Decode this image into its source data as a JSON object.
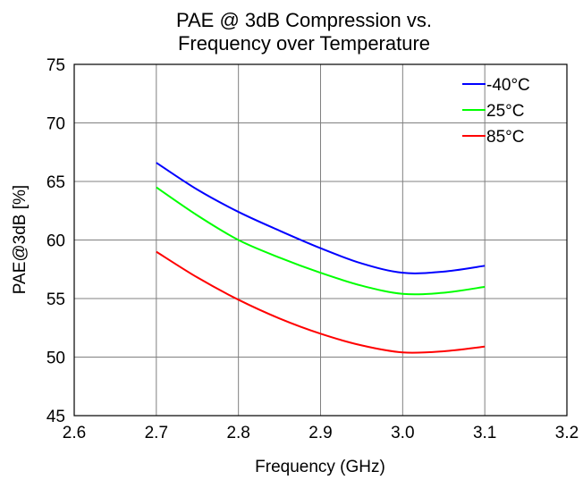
{
  "chart_data": {
    "type": "line",
    "title": "PAE @ 3dB Compression vs. Frequency over Temperature",
    "title_lines": [
      "PAE @ 3dB Compression vs.",
      "Frequency over Temperature"
    ],
    "xlabel": "Frequency (GHz)",
    "ylabel": "PAE@3dB [%]",
    "xlim": [
      2.6,
      3.2
    ],
    "ylim": [
      45,
      75
    ],
    "x_ticks": [
      2.6,
      2.7,
      2.8,
      2.9,
      3.0,
      3.1,
      3.2
    ],
    "x_tick_labels": [
      "2.6",
      "2.7",
      "2.8",
      "2.9",
      "3.0",
      "3.1",
      "3.2"
    ],
    "y_ticks": [
      45,
      50,
      55,
      60,
      65,
      70,
      75
    ],
    "y_tick_labels": [
      "45",
      "50",
      "55",
      "60",
      "65",
      "70",
      "75"
    ],
    "grid": true,
    "legend_position": "top-right",
    "x": [
      2.7,
      2.75,
      2.8,
      2.85,
      2.9,
      2.95,
      3.0,
      3.05,
      3.1
    ],
    "series": [
      {
        "name": "-40°C",
        "color": "#0000ff",
        "values": [
          66.6,
          64.3,
          62.4,
          60.8,
          59.3,
          58.0,
          57.2,
          57.3,
          57.8
        ]
      },
      {
        "name": "25°C",
        "color": "#00ff00",
        "values": [
          64.5,
          62.1,
          60.0,
          58.5,
          57.2,
          56.1,
          55.4,
          55.5,
          56.0
        ]
      },
      {
        "name": "85°C",
        "color": "#ff0000",
        "values": [
          59.0,
          56.8,
          54.9,
          53.3,
          52.0,
          51.0,
          50.4,
          50.5,
          50.9
        ]
      }
    ]
  }
}
